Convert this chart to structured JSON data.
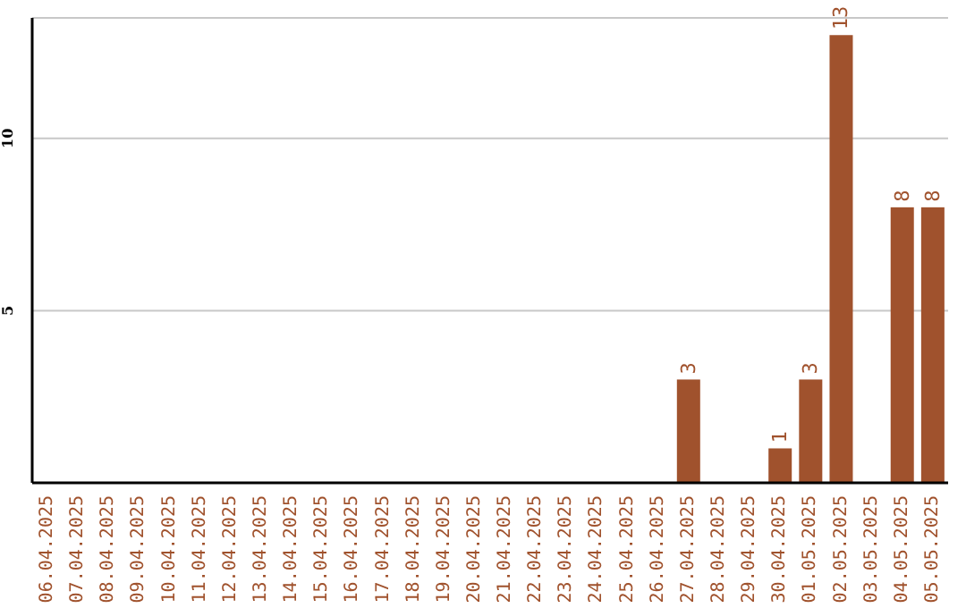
{
  "chart_data": {
    "type": "bar",
    "categories": [
      "06.04.2025",
      "07.04.2025",
      "08.04.2025",
      "09.04.2025",
      "10.04.2025",
      "11.04.2025",
      "12.04.2025",
      "13.04.2025",
      "14.04.2025",
      "15.04.2025",
      "16.04.2025",
      "17.04.2025",
      "18.04.2025",
      "19.04.2025",
      "20.04.2025",
      "21.04.2025",
      "22.04.2025",
      "23.04.2025",
      "24.04.2025",
      "25.04.2025",
      "26.04.2025",
      "27.04.2025",
      "28.04.2025",
      "29.04.2025",
      "30.04.2025",
      "01.05.2025",
      "02.05.2025",
      "03.05.2025",
      "04.05.2025",
      "05.05.2025"
    ],
    "values": [
      0,
      0,
      0,
      0,
      0,
      0,
      0,
      0,
      0,
      0,
      0,
      0,
      0,
      0,
      0,
      0,
      0,
      0,
      0,
      0,
      0,
      3,
      0,
      0,
      1,
      3,
      13,
      0,
      8,
      8
    ],
    "value_labels": [
      null,
      null,
      null,
      null,
      null,
      null,
      null,
      null,
      null,
      null,
      null,
      null,
      null,
      null,
      null,
      null,
      null,
      null,
      null,
      null,
      null,
      "3",
      null,
      null,
      "1",
      "3",
      "13",
      null,
      "8",
      "8"
    ],
    "color": "#a0522d",
    "ylim": [
      0,
      13.5
    ],
    "yticks": [
      5,
      10
    ],
    "grid": "y"
  }
}
